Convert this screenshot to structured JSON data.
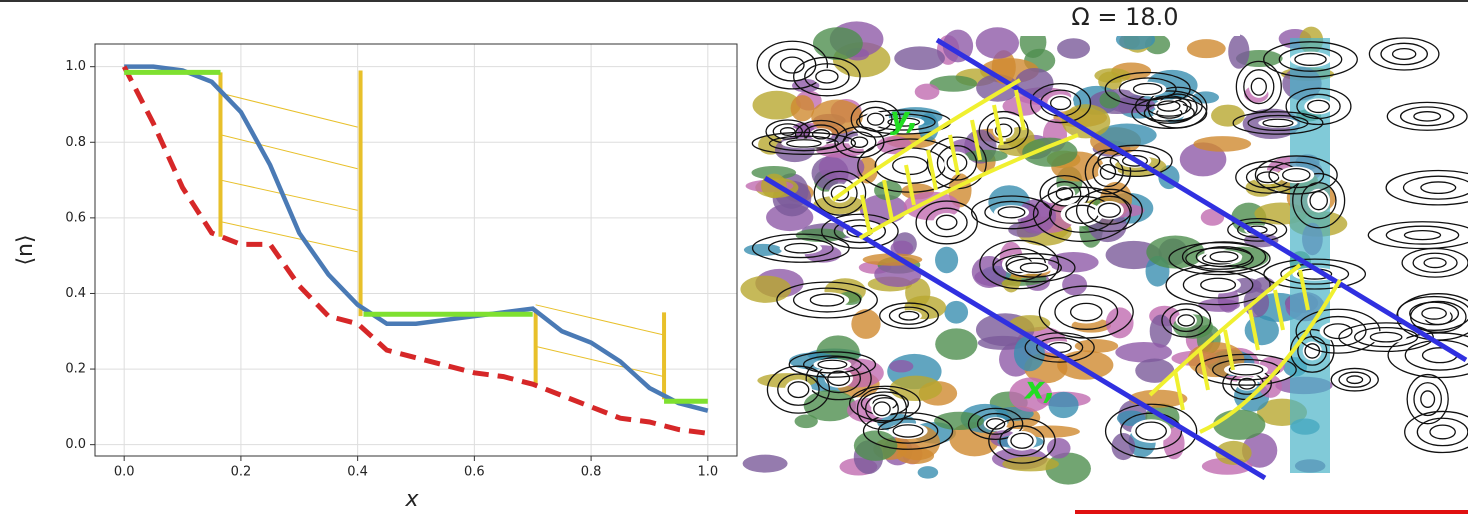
{
  "chart_data": {
    "type": "line",
    "x": [
      0,
      0.05,
      0.1,
      0.15,
      0.2,
      0.25,
      0.3,
      0.35,
      0.4,
      0.45,
      0.5,
      0.55,
      0.6,
      0.65,
      0.7,
      0.75,
      0.8,
      0.85,
      0.9,
      0.95,
      1.0
    ],
    "series": [
      {
        "color": "#4a7ab5",
        "dash": false,
        "values": [
          1.0,
          1.0,
          0.99,
          0.96,
          0.88,
          0.74,
          0.56,
          0.45,
          0.37,
          0.32,
          0.32,
          0.33,
          0.34,
          0.35,
          0.36,
          0.3,
          0.27,
          0.22,
          0.15,
          0.11,
          0.09
        ]
      },
      {
        "color": "#d62728",
        "dash": true,
        "values": [
          1.0,
          0.85,
          0.68,
          0.56,
          0.53,
          0.53,
          0.42,
          0.34,
          0.32,
          0.25,
          0.23,
          0.21,
          0.19,
          0.18,
          0.16,
          0.13,
          0.1,
          0.07,
          0.06,
          0.04,
          0.03
        ]
      }
    ],
    "annotations": [
      {
        "color": "#e8c02a",
        "width": 1,
        "x": [
          0.165,
          0.4
        ],
        "y": [
          0.93,
          0.84
        ]
      },
      {
        "color": "#e8c02a",
        "width": 1,
        "x": [
          0.165,
          0.4
        ],
        "y": [
          0.82,
          0.73
        ]
      },
      {
        "color": "#e8c02a",
        "width": 1,
        "x": [
          0.165,
          0.4
        ],
        "y": [
          0.7,
          0.62
        ]
      },
      {
        "color": "#e8c02a",
        "width": 1,
        "x": [
          0.165,
          0.4
        ],
        "y": [
          0.59,
          0.51
        ]
      },
      {
        "color": "#e8c02a",
        "width": 1,
        "x": [
          0.705,
          0.925
        ],
        "y": [
          0.37,
          0.29
        ]
      },
      {
        "color": "#e8c02a",
        "width": 1,
        "x": [
          0.705,
          0.925
        ],
        "y": [
          0.26,
          0.18
        ]
      },
      {
        "color": "#e8c02a",
        "width": 4,
        "x": [
          0.165,
          0.165
        ],
        "y": [
          0.985,
          0.55
        ]
      },
      {
        "color": "#e8c02a",
        "width": 4,
        "x": [
          0.405,
          0.405
        ],
        "y": [
          0.99,
          0.34
        ]
      },
      {
        "color": "#e8c02a",
        "width": 4,
        "x": [
          0.705,
          0.705
        ],
        "y": [
          0.35,
          0.16
        ]
      },
      {
        "color": "#e8c02a",
        "width": 4,
        "x": [
          0.925,
          0.925
        ],
        "y": [
          0.35,
          0.12
        ]
      },
      {
        "color": "#7fe030",
        "width": 5,
        "x": [
          0.0,
          0.165
        ],
        "y": [
          0.985,
          0.985
        ]
      },
      {
        "color": "#7fe030",
        "width": 5,
        "x": [
          0.41,
          0.7
        ],
        "y": [
          0.345,
          0.345
        ]
      },
      {
        "color": "#7fe030",
        "width": 5,
        "x": [
          0.925,
          1.0
        ],
        "y": [
          0.115,
          0.115
        ]
      }
    ],
    "xlabel": "x",
    "ylabel": "⟨n⟩",
    "xlim": [
      -0.05,
      1.05
    ],
    "ylim": [
      -0.03,
      1.06
    ],
    "xticks": [
      {
        "value": 0,
        "label": "0.0"
      },
      0.2,
      0.4,
      0.6,
      0.8,
      {
        "value": 1,
        "label": "1.0"
      }
    ],
    "yticks": [
      {
        "value": 0,
        "label": "0.0"
      },
      0.2,
      0.4,
      0.6,
      0.8,
      {
        "value": 1,
        "label": "1.0"
      }
    ],
    "grid": true
  },
  "panel": {
    "title": "Ω = 18.0",
    "labels": [
      "y,",
      "x,"
    ]
  }
}
